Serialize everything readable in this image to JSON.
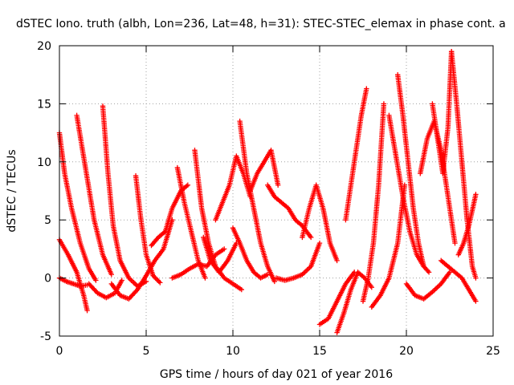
{
  "chart_data": {
    "type": "scatter",
    "title": "dSTEC Iono. truth (albh, Lon=236, Lat=48, h=31): STEC-STEC_elemax in phase cont. a",
    "xlabel": "GPS time / hours of day 021 of year 2016",
    "ylabel": "dSTEC  / TECUs",
    "xlim": [
      0,
      25
    ],
    "ylim": [
      -5,
      20
    ],
    "xticks": [
      0,
      5,
      10,
      15,
      20,
      25
    ],
    "yticks": [
      -5,
      0,
      5,
      10,
      15,
      20
    ],
    "grid": true,
    "marker": "+",
    "color": "#ff0000",
    "series": [
      {
        "x": [
          0.0,
          0.3,
          0.7,
          1.2,
          1.7,
          2.1
        ],
        "y": [
          12.5,
          9.0,
          6.0,
          3.0,
          0.8,
          -0.2
        ]
      },
      {
        "x": [
          0.0,
          0.5,
          1.0,
          1.4,
          1.6
        ],
        "y": [
          3.3,
          2.0,
          0.5,
          -1.5,
          -2.8
        ]
      },
      {
        "x": [
          0.0,
          0.4,
          0.8,
          1.2,
          1.6
        ],
        "y": [
          0.0,
          -0.3,
          -0.5,
          -0.7,
          -0.6
        ]
      },
      {
        "x": [
          1.0,
          1.5,
          2.0,
          2.5,
          3.0
        ],
        "y": [
          14.0,
          9.5,
          5.0,
          2.0,
          0.3
        ]
      },
      {
        "x": [
          1.7,
          2.2,
          2.7,
          3.2,
          3.6
        ],
        "y": [
          -0.5,
          -1.3,
          -1.7,
          -1.3,
          -0.2
        ]
      },
      {
        "x": [
          2.5,
          2.8,
          3.1,
          3.5,
          4.0,
          4.5,
          5.0
        ],
        "y": [
          14.8,
          9.0,
          4.5,
          1.5,
          0.0,
          -0.7,
          -0.3
        ]
      },
      {
        "x": [
          3.0,
          3.5,
          4.0,
          4.5,
          5.0,
          5.5,
          6.0,
          6.5
        ],
        "y": [
          -0.5,
          -1.5,
          -1.8,
          -1.0,
          0.2,
          1.5,
          2.5,
          5.0
        ]
      },
      {
        "x": [
          4.4,
          4.7,
          5.0,
          5.4,
          5.8
        ],
        "y": [
          8.8,
          5.0,
          2.0,
          0.2,
          -0.4
        ]
      },
      {
        "x": [
          5.3,
          5.7,
          6.1,
          6.5,
          7.0,
          7.4
        ],
        "y": [
          2.8,
          3.5,
          4.0,
          6.0,
          7.5,
          8.0
        ]
      },
      {
        "x": [
          6.5,
          7.0,
          7.5,
          8.0,
          8.5,
          9.0,
          9.5
        ],
        "y": [
          0.0,
          0.3,
          0.8,
          1.2,
          1.0,
          2.0,
          2.5
        ]
      },
      {
        "x": [
          6.8,
          7.2,
          7.6,
          8.0,
          8.4
        ],
        "y": [
          9.5,
          6.5,
          4.0,
          1.5,
          0.0
        ]
      },
      {
        "x": [
          7.8,
          8.2,
          8.6,
          9.0,
          9.5,
          10.0,
          10.5
        ],
        "y": [
          11.0,
          6.0,
          3.0,
          1.0,
          0.0,
          -0.5,
          -1.0
        ]
      },
      {
        "x": [
          8.3,
          8.7,
          9.2,
          9.7,
          10.2
        ],
        "y": [
          3.5,
          1.5,
          0.5,
          1.5,
          3.0
        ]
      },
      {
        "x": [
          9.0,
          9.4,
          9.8,
          10.2,
          10.6,
          11.0
        ],
        "y": [
          5.0,
          6.5,
          8.0,
          10.5,
          9.0,
          7.0
        ]
      },
      {
        "x": [
          10.0,
          10.4,
          10.8,
          11.2,
          11.6,
          12.0
        ],
        "y": [
          4.3,
          3.0,
          1.5,
          0.5,
          0.0,
          0.3
        ]
      },
      {
        "x": [
          10.4,
          10.8,
          11.2,
          11.6,
          12.0,
          12.4
        ],
        "y": [
          13.5,
          9.0,
          6.0,
          3.0,
          1.0,
          -0.3
        ]
      },
      {
        "x": [
          11.0,
          11.4,
          11.8,
          12.2,
          12.6
        ],
        "y": [
          7.5,
          9.0,
          10.0,
          11.0,
          8.0
        ]
      },
      {
        "x": [
          12.0,
          12.4,
          12.8,
          13.2,
          13.6,
          14.0,
          14.5
        ],
        "y": [
          8.0,
          7.0,
          6.5,
          6.0,
          5.0,
          4.5,
          3.5
        ]
      },
      {
        "x": [
          12.5,
          13.0,
          13.5,
          14.0,
          14.5,
          15.0
        ],
        "y": [
          0.0,
          -0.2,
          0.0,
          0.3,
          1.0,
          3.0
        ]
      },
      {
        "x": [
          14.0,
          14.4,
          14.8,
          15.2,
          15.6,
          16.0
        ],
        "y": [
          3.5,
          6.0,
          8.0,
          6.0,
          3.0,
          1.5
        ]
      },
      {
        "x": [
          15.0,
          15.5,
          16.0,
          16.5,
          17.0
        ],
        "y": [
          -4.0,
          -3.5,
          -2.0,
          -0.5,
          0.5
        ]
      },
      {
        "x": [
          16.0,
          16.4,
          16.8,
          17.2,
          17.6,
          18.0
        ],
        "y": [
          -4.7,
          -3.0,
          -1.0,
          0.5,
          0.0,
          -0.8
        ]
      },
      {
        "x": [
          16.5,
          16.8,
          17.1,
          17.4,
          17.7
        ],
        "y": [
          5.0,
          8.0,
          11.0,
          14.0,
          16.3
        ]
      },
      {
        "x": [
          17.5,
          17.8,
          18.1,
          18.4,
          18.7
        ],
        "y": [
          -2.0,
          0.0,
          3.0,
          8.0,
          15.0
        ]
      },
      {
        "x": [
          18.0,
          18.5,
          19.0,
          19.5,
          19.9
        ],
        "y": [
          -2.5,
          -1.5,
          0.0,
          3.0,
          8.0
        ]
      },
      {
        "x": [
          19.0,
          19.4,
          19.8,
          20.2,
          20.6,
          21.0
        ],
        "y": [
          14.0,
          10.5,
          7.0,
          4.0,
          2.0,
          1.0
        ]
      },
      {
        "x": [
          19.5,
          19.8,
          20.1,
          20.4,
          20.7,
          21.0,
          21.3
        ],
        "y": [
          17.5,
          14.0,
          10.0,
          6.0,
          3.0,
          1.0,
          0.5
        ]
      },
      {
        "x": [
          20.0,
          20.5,
          21.0,
          21.5,
          22.0,
          22.5
        ],
        "y": [
          -0.5,
          -1.5,
          -1.8,
          -1.2,
          -0.5,
          0.5
        ]
      },
      {
        "x": [
          20.8,
          21.2,
          21.6,
          22.0,
          22.4,
          22.8
        ],
        "y": [
          9.0,
          12.0,
          13.5,
          11.0,
          7.0,
          3.0
        ]
      },
      {
        "x": [
          21.5,
          21.8,
          22.1,
          22.4,
          22.6
        ],
        "y": [
          15.0,
          12.0,
          9.0,
          13.0,
          19.5
        ]
      },
      {
        "x": [
          22.0,
          22.4,
          22.8,
          23.2,
          23.6,
          24.0
        ],
        "y": [
          1.5,
          1.0,
          0.5,
          0.0,
          -1.0,
          -2.0
        ]
      },
      {
        "x": [
          22.6,
          22.9,
          23.2,
          23.5,
          23.8,
          24.0
        ],
        "y": [
          19.5,
          15.0,
          10.0,
          5.0,
          1.0,
          0.0
        ]
      },
      {
        "x": [
          23.0,
          23.3,
          23.6,
          23.9,
          24.0
        ],
        "y": [
          2.0,
          3.0,
          4.5,
          6.5,
          7.2
        ]
      }
    ]
  }
}
